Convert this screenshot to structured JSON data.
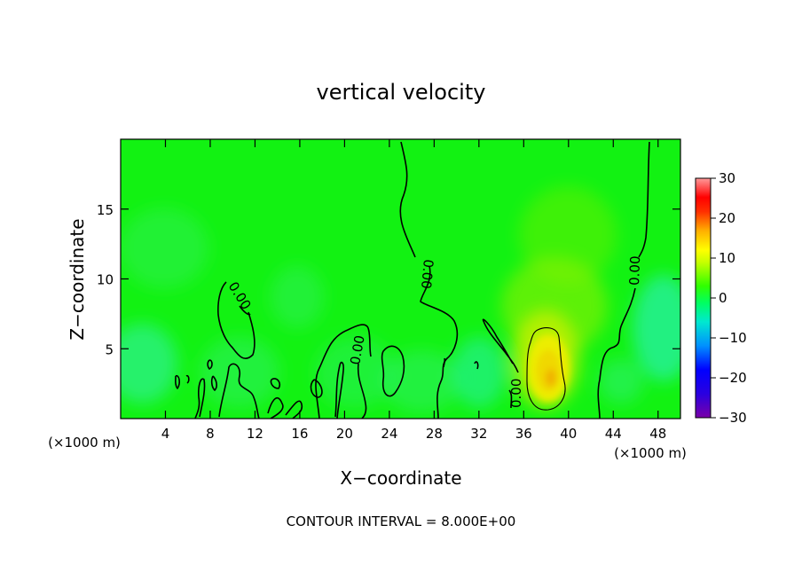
{
  "chart_data": {
    "type": "heatmap",
    "title": "vertical velocity",
    "xlabel": "X−coordinate",
    "ylabel": "Z−coordinate",
    "x_unit_left": "(×1000 m)",
    "x_unit_right": "(×1000 m)",
    "xlim": [
      0,
      50
    ],
    "ylim": [
      0,
      20
    ],
    "x_ticks": [
      4,
      8,
      12,
      16,
      20,
      24,
      28,
      32,
      36,
      40,
      44,
      48
    ],
    "y_ticks": [
      5,
      10,
      15
    ],
    "colorbar": {
      "range": [
        -30,
        30
      ],
      "ticks": [
        30,
        20,
        10,
        0,
        -10,
        -20,
        -30
      ],
      "tick_labels": [
        "30",
        "20",
        "10",
        "0",
        "−10",
        "−20",
        "−30"
      ],
      "colors": [
        "#7a00a8",
        "#0000ff",
        "#00bfff",
        "#00ff80",
        "#00e600",
        "#c8ff00",
        "#ffff00",
        "#ff9900",
        "#ff0000",
        "#ff9090"
      ]
    },
    "contour_interval_text": "CONTOUR INTERVAL =  8.000E+00",
    "contour_labels": [
      "0.00",
      "0.00",
      "0.00",
      "0.00",
      "0.00"
    ],
    "features": [
      {
        "name": "updraft core",
        "x": 38,
        "z": 3,
        "value": 12
      },
      {
        "name": "weak updraft plume",
        "x": 40,
        "z": 12,
        "value": 3
      },
      {
        "name": "weak downdraft",
        "x": 50,
        "z": 6,
        "value": -5
      },
      {
        "name": "weak downdraft",
        "x": 2,
        "z": 5,
        "value": -4
      },
      {
        "name": "weak downdraft",
        "x": 33,
        "z": 3,
        "value": -3
      }
    ],
    "grid": false
  }
}
